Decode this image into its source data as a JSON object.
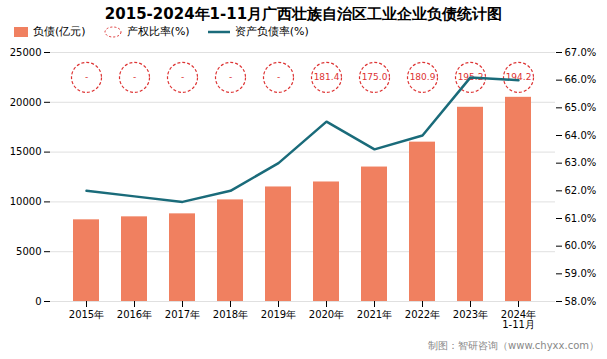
{
  "chart_data": {
    "type": "bar",
    "title": "2015-2024年1-11月广西壮族自治区工业企业负债统计图",
    "caption": "制图：智研咨询（www.chyxx.com）",
    "categories": [
      "2015年",
      "2016年",
      "2017年",
      "2018年",
      "2019年",
      "2020年",
      "2021年",
      "2022年",
      "2023年",
      "2024年\n1-11月"
    ],
    "series": [
      {
        "name": "负债(亿元)",
        "type": "bar",
        "color": "#F08060",
        "values": [
          8200,
          8500,
          8800,
          10200,
          11500,
          12000,
          13500,
          16000,
          19500,
          20500
        ]
      },
      {
        "name": "产权比率(%)",
        "type": "label",
        "color": "#DD3333",
        "marker": "ellipse",
        "line_style": "dashed",
        "data_labels": true,
        "values": [
          null,
          null,
          null,
          null,
          null,
          181.4,
          175.0,
          180.9,
          195.2,
          194.2
        ],
        "value_labels": [
          "-",
          "-",
          "-",
          "-",
          "-",
          "181.4",
          "175.0",
          "180.9",
          "195.2",
          "194.2"
        ]
      },
      {
        "name": "资产负债率(%)",
        "type": "line",
        "axis": "y2",
        "color": "#1a6b7a",
        "values": [
          62.0,
          61.8,
          61.6,
          62.0,
          63.0,
          64.5,
          63.5,
          64.0,
          66.1,
          66.0
        ]
      }
    ],
    "ylim": [
      0,
      25000
    ],
    "yticks": [
      0,
      5000,
      10000,
      15000,
      20000,
      25000
    ],
    "y2lim": [
      58.0,
      67.0
    ],
    "y2ticks": [
      {
        "value": 58.0,
        "label": "58.0%"
      },
      {
        "value": 59.0,
        "label": "59.0%"
      },
      {
        "value": 60.0,
        "label": "60.0%"
      },
      {
        "value": 61.0,
        "label": "61.0%"
      },
      {
        "value": 62.0,
        "label": "62.0%"
      },
      {
        "value": 63.0,
        "label": "63.0%"
      },
      {
        "value": 64.0,
        "label": "64.0%"
      },
      {
        "value": 65.0,
        "label": "65.0%"
      },
      {
        "value": 66.0,
        "label": "66.0%"
      },
      {
        "value": 67.0,
        "label": "67.0%"
      }
    ],
    "grid": true,
    "legend": "upper left"
  }
}
